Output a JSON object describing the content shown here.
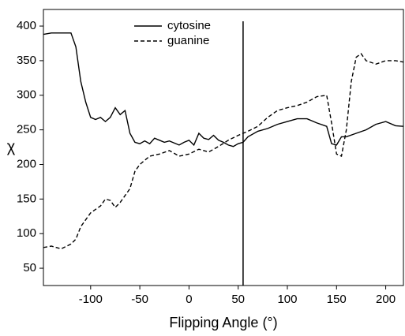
{
  "chart_data": {
    "type": "line",
    "xlabel": "Flipping Angle (°)",
    "ylabel": "χ",
    "xlim": [
      -148,
      218
    ],
    "ylim": [
      25,
      424
    ],
    "xticks": [
      -100,
      -50,
      0,
      50,
      100,
      150,
      200
    ],
    "yticks": [
      50,
      100,
      150,
      200,
      250,
      300,
      350,
      400
    ],
    "vline": 55,
    "series": [
      {
        "name": "cytosine",
        "color": "#000000",
        "dash": "solid",
        "x": [
          -148,
          -140,
          -130,
          -120,
          -115,
          -110,
          -105,
          -100,
          -95,
          -90,
          -85,
          -80,
          -75,
          -70,
          -65,
          -60,
          -55,
          -50,
          -45,
          -40,
          -35,
          -30,
          -25,
          -20,
          -10,
          -5,
          0,
          5,
          10,
          15,
          20,
          25,
          30,
          35,
          40,
          45,
          50,
          55,
          60,
          70,
          80,
          90,
          100,
          110,
          120,
          130,
          140,
          145,
          150,
          155,
          160,
          170,
          180,
          190,
          200,
          210,
          218
        ],
        "values": [
          388,
          390,
          390,
          390,
          370,
          320,
          290,
          268,
          265,
          268,
          262,
          268,
          282,
          272,
          278,
          245,
          232,
          230,
          234,
          230,
          238,
          235,
          232,
          234,
          228,
          232,
          235,
          228,
          245,
          238,
          236,
          242,
          235,
          232,
          228,
          226,
          230,
          232,
          240,
          248,
          252,
          258,
          262,
          266,
          266,
          260,
          255,
          230,
          228,
          240,
          240,
          245,
          250,
          258,
          262,
          256,
          255
        ]
      },
      {
        "name": "guanine",
        "color": "#000000",
        "dash": "dashed",
        "x": [
          -148,
          -140,
          -130,
          -120,
          -115,
          -110,
          -100,
          -90,
          -85,
          -80,
          -75,
          -70,
          -60,
          -55,
          -50,
          -40,
          -30,
          -20,
          -10,
          0,
          10,
          20,
          30,
          40,
          50,
          60,
          70,
          80,
          90,
          100,
          110,
          120,
          130,
          140,
          145,
          150,
          155,
          160,
          165,
          170,
          175,
          180,
          190,
          200,
          210,
          218
        ],
        "values": [
          80,
          82,
          78,
          85,
          92,
          110,
          130,
          140,
          150,
          148,
          138,
          145,
          165,
          190,
          200,
          212,
          215,
          220,
          212,
          215,
          222,
          218,
          226,
          235,
          242,
          248,
          255,
          268,
          278,
          282,
          285,
          290,
          298,
          300,
          260,
          215,
          212,
          250,
          320,
          355,
          360,
          350,
          345,
          350,
          350,
          348
        ]
      }
    ]
  }
}
